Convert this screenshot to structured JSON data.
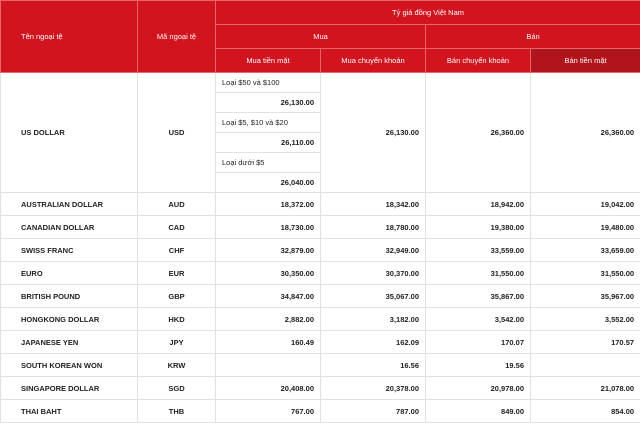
{
  "header": {
    "currency_name": "Tên ngoại tệ",
    "currency_code": "Mã ngoại tệ",
    "group": "Tỷ giá đồng Việt Nam",
    "buy": "Mua",
    "sell": "Bán",
    "cash_buy": "Mua tiền mặt",
    "transfer_buy": "Mua chuyển khoản",
    "transfer_sell": "Bán chuyển khoản",
    "cash_sell": "Bán tiền mặt"
  },
  "table": {
    "rows": [
      {
        "name": "US DOLLAR",
        "code": "USD",
        "cash_buy_tiers": [
          {
            "label": "Loại $50 và $100",
            "rate": "26,130.00"
          },
          {
            "label": "Loại $5, $10 và $20",
            "rate": "26,110.00"
          },
          {
            "label": "Loại dưới $5",
            "rate": "26,040.00"
          }
        ],
        "transfer_buy": "26,130.00",
        "transfer_sell": "26,360.00",
        "cash_sell": "26,360.00"
      },
      {
        "name": "AUSTRALIAN DOLLAR",
        "code": "AUD",
        "cash_buy": "18,372.00",
        "transfer_buy": "18,342.00",
        "transfer_sell": "18,942.00",
        "cash_sell": "19,042.00"
      },
      {
        "name": "CANADIAN DOLLAR",
        "code": "CAD",
        "cash_buy": "18,730.00",
        "transfer_buy": "18,780.00",
        "transfer_sell": "19,380.00",
        "cash_sell": "19,480.00"
      },
      {
        "name": "SWISS FRANC",
        "code": "CHF",
        "cash_buy": "32,879.00",
        "transfer_buy": "32,949.00",
        "transfer_sell": "33,559.00",
        "cash_sell": "33,659.00"
      },
      {
        "name": "EURO",
        "code": "EUR",
        "cash_buy": "30,350.00",
        "transfer_buy": "30,370.00",
        "transfer_sell": "31,550.00",
        "cash_sell": "31,550.00"
      },
      {
        "name": "BRITISH POUND",
        "code": "GBP",
        "cash_buy": "34,847.00",
        "transfer_buy": "35,067.00",
        "transfer_sell": "35,867.00",
        "cash_sell": "35,967.00"
      },
      {
        "name": "HONGKONG DOLLAR",
        "code": "HKD",
        "cash_buy": "2,882.00",
        "transfer_buy": "3,182.00",
        "transfer_sell": "3,542.00",
        "cash_sell": "3,552.00"
      },
      {
        "name": "JAPANESE YEN",
        "code": "JPY",
        "cash_buy": "160.49",
        "transfer_buy": "162.09",
        "transfer_sell": "170.07",
        "cash_sell": "170.57"
      },
      {
        "name": "SOUTH KOREAN WON",
        "code": "KRW",
        "transfer_buy": "16.56",
        "transfer_sell": "19.56"
      },
      {
        "name": "SINGAPORE DOLLAR",
        "code": "SGD",
        "cash_buy": "20,408.00",
        "transfer_buy": "20,378.00",
        "transfer_sell": "20,978.00",
        "cash_sell": "21,078.00"
      },
      {
        "name": "THAI BAHT",
        "code": "THB",
        "cash_buy": "767.00",
        "transfer_buy": "787.00",
        "transfer_sell": "849.00",
        "cash_sell": "854.00"
      }
    ]
  }
}
